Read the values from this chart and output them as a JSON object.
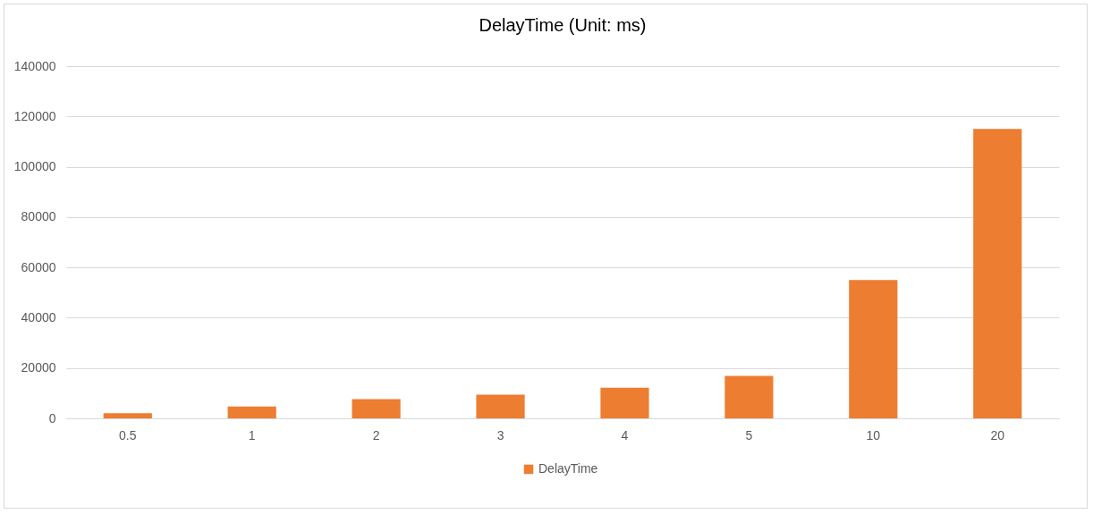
{
  "chart_data": {
    "type": "bar",
    "title": "DelayTime (Unit: ms)",
    "categories": [
      "0.5",
      "1",
      "2",
      "3",
      "4",
      "5",
      "10",
      "20"
    ],
    "series": [
      {
        "name": "DelayTime",
        "color": "#ed7d31",
        "values": [
          2000,
          4700,
          7600,
          9400,
          12200,
          16900,
          55000,
          115000
        ]
      }
    ],
    "ylim": [
      0,
      140000
    ],
    "yticks": [
      0,
      20000,
      40000,
      60000,
      80000,
      100000,
      120000,
      140000
    ],
    "grid": "y",
    "legend": "bottom"
  }
}
